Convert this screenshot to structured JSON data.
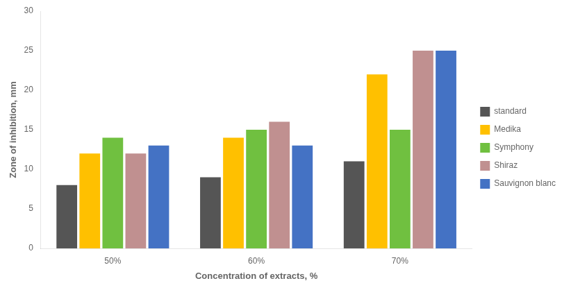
{
  "chart_data": {
    "type": "bar",
    "categories": [
      "50%",
      "60%",
      "70%"
    ],
    "series": [
      {
        "name": "standard",
        "color": "#555555",
        "values": [
          8,
          9,
          11
        ]
      },
      {
        "name": "Medika",
        "color": "#FFC000",
        "values": [
          12,
          14,
          22
        ]
      },
      {
        "name": "Symphony",
        "color": "#70C040",
        "values": [
          14,
          15,
          15
        ]
      },
      {
        "name": "Shiraz",
        "color": "#C09090",
        "values": [
          12,
          16,
          25
        ]
      },
      {
        "name": "Sauvignon blanc",
        "color": "#4472C4",
        "values": [
          13,
          13,
          25
        ]
      }
    ],
    "xlabel": "Concentration of extracts, %",
    "ylabel": "Zone of inhibition, mm",
    "ylim": [
      0,
      30
    ],
    "yticks": [
      0,
      5,
      10,
      15,
      20,
      25,
      30
    ],
    "grid": false,
    "legend": "right"
  }
}
